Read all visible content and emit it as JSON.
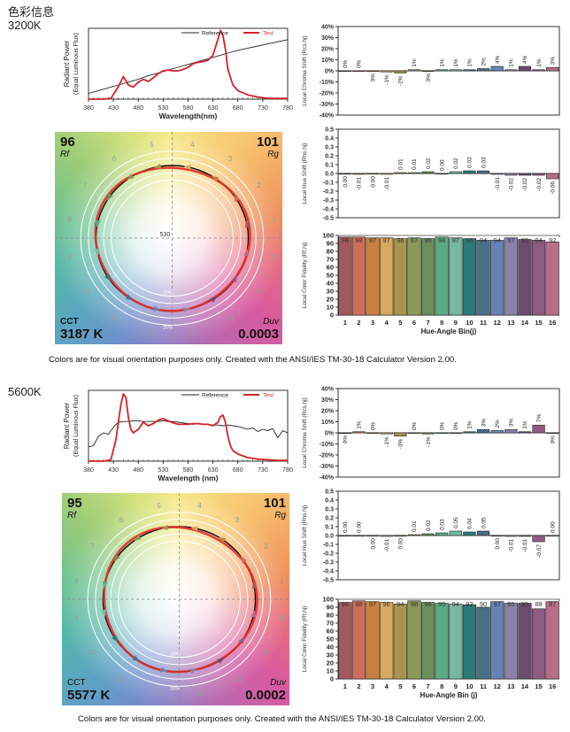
{
  "page": {
    "heading": "色彩信息",
    "footnote": "Colors are for visual orientation purposes only. Created with the ANSI/IES TM-30-18 Calculator Version 2.00."
  },
  "reports": [
    {
      "label": "3200K",
      "cvg": {
        "rf_value": "96",
        "rf_label": "Rf",
        "rg_value": "101",
        "rg_label": "Rg",
        "cct_label": "CCT",
        "cct_value": "3187 K",
        "duv_label": "Duv",
        "duv_value": "0.0003",
        "center_label": "530",
        "ring_labels": [
          "-20%",
          "20%"
        ],
        "bin_labels": [
          "1",
          "2",
          "3",
          "4",
          "5",
          "6",
          "7",
          "8",
          "9",
          "10",
          "11",
          "12",
          "13",
          "14",
          "15",
          "16"
        ]
      }
    },
    {
      "label": "5600K",
      "cvg": {
        "rf_value": "95",
        "rf_label": "Rf",
        "rg_value": "101",
        "rg_label": "Rg",
        "cct_label": "CCT",
        "cct_value": "5577 K",
        "duv_label": "Duv",
        "duv_value": "0.0002",
        "center_label": "",
        "ring_labels": [
          "-20%",
          "20%"
        ],
        "bin_labels": [
          "1",
          "2",
          "3",
          "4",
          "5",
          "6",
          "7",
          "8",
          "9",
          "10",
          "11",
          "12",
          "13",
          "14",
          "15",
          "16"
        ]
      }
    }
  ],
  "chart_data": [
    {
      "id": "spd-3200",
      "type": "line",
      "title": "",
      "xlabel": "Wavelength(nm)",
      "ylabel": "Radiant Power",
      "ylabel2": "(Equal Luminous Flux)",
      "xlim": [
        380,
        780
      ],
      "ylim": [
        0,
        1
      ],
      "xticks": [
        380,
        430,
        480,
        530,
        580,
        630,
        680,
        730,
        780
      ],
      "legend": [
        "Reference",
        "Test"
      ],
      "legend_position": "top-right",
      "series": [
        {
          "name": "Reference",
          "color": "#222222",
          "x": [
            380,
            400,
            420,
            440,
            460,
            480,
            500,
            520,
            540,
            560,
            580,
            600,
            620,
            640,
            660,
            680,
            700,
            720,
            740,
            760,
            780
          ],
          "y": [
            0.08,
            0.12,
            0.16,
            0.2,
            0.24,
            0.28,
            0.33,
            0.37,
            0.41,
            0.45,
            0.49,
            0.53,
            0.57,
            0.61,
            0.65,
            0.69,
            0.72,
            0.75,
            0.78,
            0.81,
            0.84
          ]
        },
        {
          "name": "Test",
          "color": "#d42128",
          "x": [
            380,
            410,
            425,
            440,
            450,
            460,
            470,
            480,
            490,
            500,
            510,
            520,
            530,
            540,
            550,
            560,
            570,
            580,
            590,
            600,
            610,
            620,
            630,
            640,
            645,
            650,
            655,
            660,
            670,
            680,
            700,
            720,
            740,
            760,
            780
          ],
          "y": [
            0,
            0,
            0.01,
            0.18,
            0.32,
            0.2,
            0.17,
            0.24,
            0.28,
            0.25,
            0.3,
            0.36,
            0.4,
            0.41,
            0.4,
            0.4,
            0.42,
            0.45,
            0.5,
            0.52,
            0.53,
            0.55,
            0.62,
            0.85,
            0.97,
            0.9,
            0.7,
            0.42,
            0.2,
            0.12,
            0.06,
            0.03,
            0.01,
            0.01,
            0.01
          ]
        }
      ]
    },
    {
      "id": "chroma-3200",
      "type": "bar",
      "ylabel": "Local Chroma Shift (Rcs,hj)",
      "ylim": [
        -40,
        40
      ],
      "yticks": [
        40,
        30,
        20,
        10,
        0,
        -10,
        -20,
        -30,
        -40
      ],
      "ytick_labels": [
        "40%",
        "30%",
        "20%",
        "10%",
        "0%",
        "-10%",
        "-20%",
        "-30%",
        "-40%"
      ],
      "categories": [
        "1",
        "2",
        "3",
        "4",
        "5",
        "6",
        "7",
        "8",
        "9",
        "10",
        "11",
        "12",
        "13",
        "14",
        "15",
        "16"
      ],
      "values": [
        0,
        0,
        0,
        -1,
        -2,
        1,
        0,
        1,
        1,
        1,
        2,
        4,
        1,
        4,
        1,
        3
      ],
      "labels": [
        "0%",
        "0%",
        "0%",
        "-1%",
        "-2%",
        "1%",
        "0%",
        "1%",
        "1%",
        "1%",
        "2%",
        "4%",
        "1%",
        "4%",
        "1%",
        "3%"
      ]
    },
    {
      "id": "hue-3200",
      "type": "bar",
      "ylabel": "Local Hue Shift (Rhs,hj)",
      "ylim": [
        -0.5,
        0.5
      ],
      "yticks": [
        0.5,
        0.4,
        0.3,
        0.2,
        0.1,
        0.0,
        -0.1,
        -0.2,
        -0.3,
        -0.4,
        -0.5
      ],
      "ytick_labels": [
        "0.5",
        "0.4",
        "0.3",
        "0.2",
        "0.1",
        "0.0",
        "-0.1",
        "-0.2",
        "-0.3",
        "-0.4",
        "-0.5"
      ],
      "categories": [
        "1",
        "2",
        "3",
        "4",
        "5",
        "6",
        "7",
        "8",
        "9",
        "10",
        "11",
        "12",
        "13",
        "14",
        "15",
        "16"
      ],
      "values": [
        0.0,
        -0.01,
        0.0,
        -0.01,
        0.01,
        0.01,
        0.02,
        0.0,
        0.02,
        0.03,
        0.03,
        -0.01,
        -0.02,
        -0.02,
        -0.02,
        -0.06
      ],
      "labels": [
        "0.00",
        "-0.01",
        "0.00",
        "-0.01",
        "0.01",
        "0.01",
        "0.02",
        "0.00",
        "0.02",
        "0.03",
        "0.03",
        "-0.01",
        "-0.02",
        "-0.02",
        "-0.02",
        "-0.06"
      ]
    },
    {
      "id": "fidelity-3200",
      "type": "bar",
      "ylabel": "Local Color Fidelity (Rf,hj)",
      "xlabel": "Hue-Angle Bin(j)",
      "ylim": [
        0,
        100
      ],
      "yticks": [
        0,
        10,
        20,
        30,
        40,
        50,
        60,
        70,
        80,
        90,
        100
      ],
      "categories": [
        "1",
        "2",
        "3",
        "4",
        "5",
        "6",
        "7",
        "8",
        "9",
        "10",
        "11",
        "12",
        "13",
        "14",
        "15",
        "16"
      ],
      "values": [
        98,
        98,
        97,
        97,
        96,
        97,
        96,
        98,
        97,
        96,
        94,
        94,
        97,
        95,
        94,
        92
      ],
      "labels": [
        "98",
        "98",
        "97",
        "97",
        "96",
        "97",
        "96",
        "98",
        "97",
        "96",
        "94",
        "94",
        "97",
        "95",
        "94",
        "92"
      ]
    },
    {
      "id": "spd-5600",
      "type": "line",
      "xlabel": "Wavelength (nm)",
      "ylabel": "Radiant Power",
      "ylabel2": "(Equal Luminous Flux)",
      "xlim": [
        380,
        780
      ],
      "ylim": [
        0,
        1
      ],
      "xticks": [
        380,
        430,
        480,
        530,
        580,
        630,
        680,
        730,
        780
      ],
      "legend": [
        "Reference",
        "Test"
      ],
      "legend_position": "top-right",
      "series": [
        {
          "name": "Reference",
          "color": "#222222",
          "x": [
            380,
            390,
            400,
            410,
            420,
            430,
            440,
            450,
            460,
            470,
            480,
            490,
            500,
            510,
            520,
            530,
            540,
            550,
            560,
            570,
            580,
            590,
            600,
            610,
            620,
            630,
            640,
            650,
            660,
            670,
            680,
            690,
            700,
            710,
            720,
            730,
            740,
            750,
            760,
            770,
            780
          ],
          "y": [
            0.2,
            0.22,
            0.35,
            0.4,
            0.38,
            0.48,
            0.55,
            0.56,
            0.56,
            0.57,
            0.57,
            0.56,
            0.56,
            0.56,
            0.56,
            0.57,
            0.56,
            0.56,
            0.55,
            0.54,
            0.53,
            0.52,
            0.53,
            0.52,
            0.52,
            0.51,
            0.51,
            0.5,
            0.51,
            0.5,
            0.49,
            0.47,
            0.45,
            0.47,
            0.42,
            0.45,
            0.43,
            0.46,
            0.33,
            0.43,
            0.4
          ]
        },
        {
          "name": "Test",
          "color": "#d42128",
          "x": [
            380,
            410,
            425,
            435,
            445,
            450,
            455,
            460,
            465,
            470,
            480,
            490,
            500,
            510,
            520,
            530,
            540,
            550,
            560,
            570,
            580,
            590,
            600,
            610,
            620,
            630,
            640,
            645,
            650,
            655,
            660,
            665,
            670,
            680,
            700,
            720,
            740,
            760,
            780
          ],
          "y": [
            0,
            0,
            0.02,
            0.3,
            0.8,
            0.95,
            0.9,
            0.62,
            0.45,
            0.4,
            0.45,
            0.55,
            0.5,
            0.53,
            0.58,
            0.6,
            0.57,
            0.54,
            0.52,
            0.52,
            0.52,
            0.53,
            0.53,
            0.52,
            0.52,
            0.5,
            0.55,
            0.63,
            0.65,
            0.55,
            0.35,
            0.22,
            0.15,
            0.1,
            0.05,
            0.03,
            0.02,
            0.01,
            0.01
          ]
        }
      ]
    },
    {
      "id": "chroma-5600",
      "type": "bar",
      "ylabel": "Local Chroma Shift (Rcs,hj)",
      "ylim": [
        -40,
        40
      ],
      "yticks": [
        40,
        30,
        20,
        10,
        0,
        -10,
        -20,
        -30,
        -40
      ],
      "ytick_labels": [
        "40%",
        "30%",
        "20%",
        "10%",
        "0%",
        "-10%",
        "-20%",
        "-30%",
        "-40%"
      ],
      "categories": [
        "1",
        "2",
        "3",
        "4",
        "5",
        "6",
        "7",
        "8",
        "9",
        "10",
        "11",
        "12",
        "13",
        "14",
        "15",
        "16"
      ],
      "values": [
        0,
        1,
        0,
        -1,
        -3,
        0,
        -1,
        0,
        0,
        1,
        3,
        2,
        3,
        1,
        7,
        0
      ],
      "labels": [
        "0%",
        "1%",
        "0%",
        "-1%",
        "-3%",
        "0%",
        "-1%",
        "0%",
        "0%",
        "1%",
        "3%",
        "2%",
        "3%",
        "1%",
        "7%",
        "0%"
      ]
    },
    {
      "id": "hue-5600",
      "type": "bar",
      "ylabel": "Local Hue Shift (Rhs,hj)",
      "ylim": [
        -0.5,
        0.5
      ],
      "yticks": [
        0.5,
        0.4,
        0.3,
        0.2,
        0.1,
        0.0,
        -0.1,
        -0.2,
        -0.3,
        -0.4,
        -0.5
      ],
      "ytick_labels": [
        "0.5",
        "0.4",
        "0.3",
        "0.2",
        "0.1",
        "0.0",
        "-0.1",
        "-0.2",
        "-0.3",
        "-0.4",
        "-0.5"
      ],
      "categories": [
        "1",
        "2",
        "3",
        "4",
        "5",
        "6",
        "7",
        "8",
        "9",
        "10",
        "11",
        "12",
        "13",
        "14",
        "15",
        "16"
      ],
      "values": [
        0.0,
        0.0,
        0.0,
        -0.01,
        0.0,
        0.01,
        0.02,
        0.03,
        0.05,
        0.04,
        0.05,
        0.0,
        -0.01,
        -0.01,
        -0.07,
        0.0
      ],
      "labels": [
        "0.00",
        "0.00",
        "0.00",
        "-0.01",
        "0.00",
        "0.01",
        "0.02",
        "0.03",
        "0.05",
        "0.04",
        "0.05",
        "0.00",
        "-0.01",
        "-0.01",
        "-0.07",
        "0.00"
      ]
    },
    {
      "id": "fidelity-5600",
      "type": "bar",
      "ylabel": "Local Color Fidelity (Rf,hj)",
      "xlabel": "Hue-Angle Bin (j)",
      "ylim": [
        0,
        100
      ],
      "yticks": [
        0,
        10,
        20,
        30,
        40,
        50,
        60,
        70,
        80,
        90,
        100
      ],
      "categories": [
        "1",
        "2",
        "3",
        "4",
        "5",
        "6",
        "7",
        "8",
        "9",
        "10",
        "11",
        "12",
        "13",
        "14",
        "15",
        "16"
      ],
      "values": [
        96,
        98,
        97,
        96,
        94,
        98,
        96,
        95,
        94,
        93,
        90,
        97,
        95,
        95,
        88,
        97
      ],
      "labels": [
        "96",
        "98",
        "97",
        "96",
        "94",
        "98",
        "96",
        "95",
        "94",
        "93",
        "90",
        "97",
        "95",
        "95",
        "88",
        "97"
      ]
    }
  ],
  "bin_colors": [
    "#a35a5e",
    "#cf6e58",
    "#c97f3f",
    "#d8a95c",
    "#a8954f",
    "#899956",
    "#6b8e5a",
    "#5aab85",
    "#74b9a0",
    "#2e7a78",
    "#4a6f88",
    "#6783b4",
    "#8c82a8",
    "#6a4c6f",
    "#8f5b80",
    "#b66f86"
  ]
}
